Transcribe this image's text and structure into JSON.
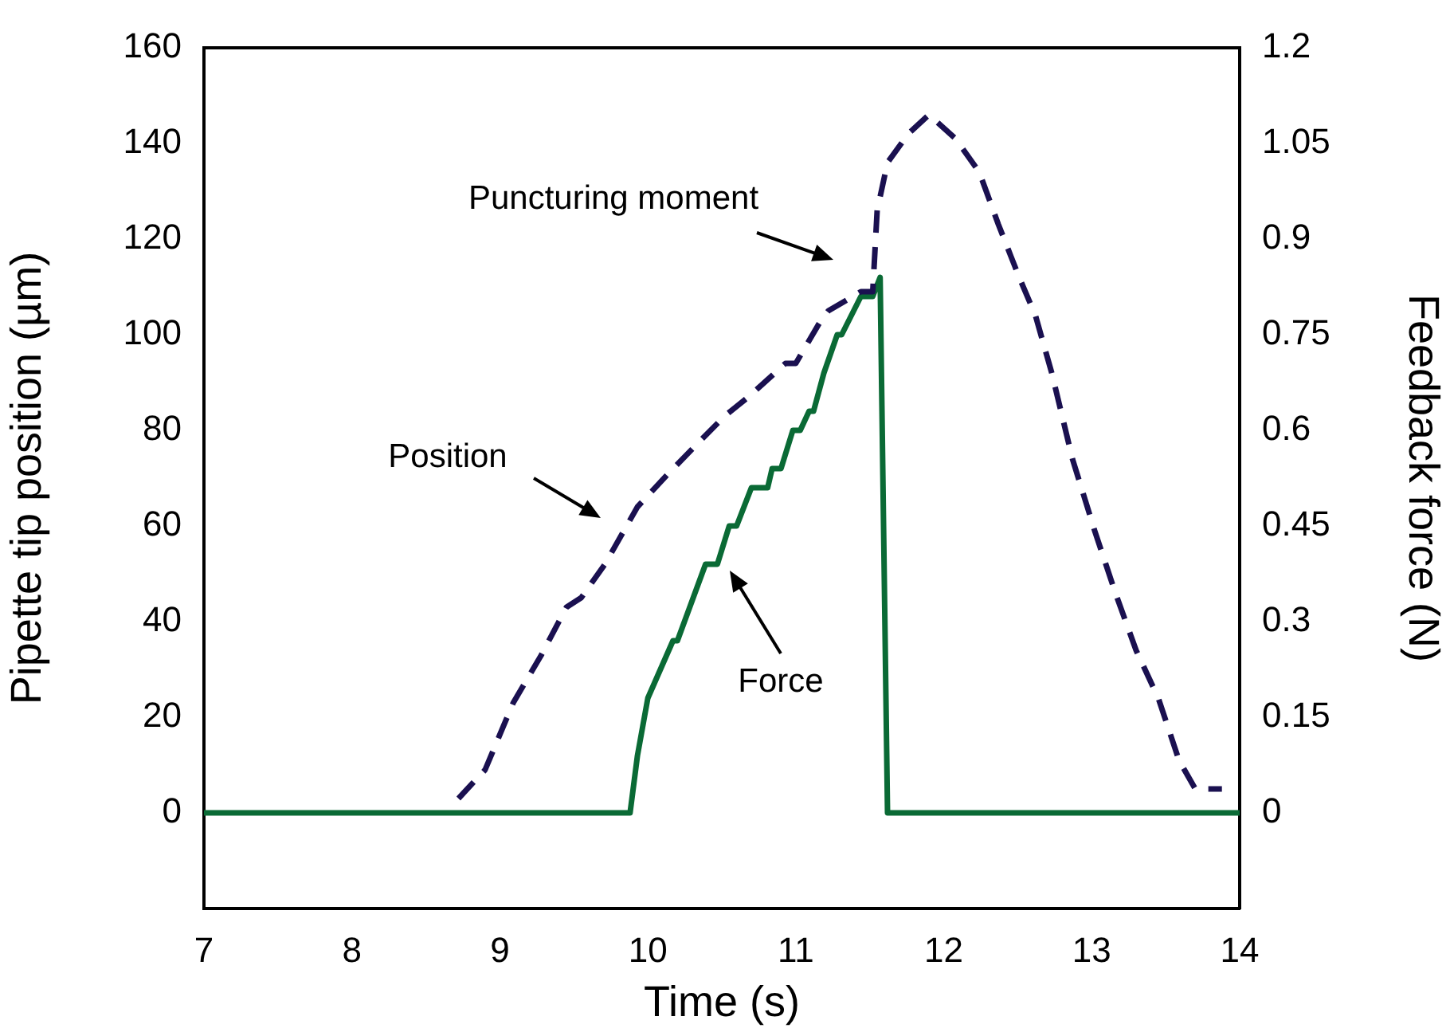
{
  "chart_data": {
    "type": "line",
    "xlabel": "Time (s)",
    "ylabel": "Pipette tip position (µm)",
    "y2label": "Feedback force (N)",
    "xlim": [
      7,
      14
    ],
    "xticks": [
      7,
      8,
      9,
      10,
      11,
      12,
      13,
      14
    ],
    "ylim": [
      -20,
      160
    ],
    "yticks": [
      0,
      20,
      40,
      60,
      80,
      100,
      120,
      140,
      160
    ],
    "y2lim": [
      -0.15,
      1.2
    ],
    "y2ticks": [
      0,
      0.15,
      0.3,
      0.45,
      0.6,
      0.75,
      0.9,
      1.05,
      1.2
    ],
    "grid": false,
    "legend": false,
    "marker": "none",
    "series": [
      {
        "color": "#1a1050",
        "line_style": "dashed",
        "x": [
          8.72,
          8.9,
          9.09,
          9.28,
          9.45,
          9.55,
          9.71,
          9.93,
          10.14,
          10.36,
          10.52,
          10.68,
          10.93,
          11.0,
          11.17,
          11.22,
          11.44,
          11.52,
          11.55,
          11.62,
          11.76,
          11.9,
          12.08,
          12.24,
          12.37,
          12.51,
          12.62,
          12.73,
          12.87,
          13.02,
          13.16,
          13.3,
          13.45,
          13.59,
          13.7,
          13.88
        ],
        "values": [
          3,
          9,
          23,
          33,
          43,
          45,
          52,
          64,
          71,
          78,
          83,
          87,
          94,
          94,
          103,
          105,
          109,
          109,
          126,
          136,
          142,
          146,
          141,
          134,
          123,
          112,
          104,
          92,
          74,
          59,
          46,
          34,
          24,
          11,
          5,
          5
        ]
      },
      {
        "color": "#0a6a35",
        "line_style": "solid",
        "axis": "y2",
        "x": [
          7,
          9.88,
          9.93,
          10.0,
          10.17,
          10.2,
          10.39,
          10.47,
          10.55,
          10.6,
          10.7,
          10.81,
          10.84,
          10.9,
          10.98,
          11.03,
          11.09,
          11.12,
          11.19,
          11.28,
          11.31,
          11.44,
          11.52,
          11.57,
          11.62,
          14
        ],
        "values": [
          0,
          0,
          0.09,
          0.18,
          0.27,
          0.27,
          0.39,
          0.39,
          0.45,
          0.45,
          0.51,
          0.51,
          0.54,
          0.54,
          0.6,
          0.6,
          0.63,
          0.63,
          0.69,
          0.75,
          0.75,
          0.81,
          0.81,
          0.84,
          0,
          0
        ]
      }
    ],
    "annotations": [
      "Puncturing moment",
      "Position",
      "Force"
    ]
  }
}
